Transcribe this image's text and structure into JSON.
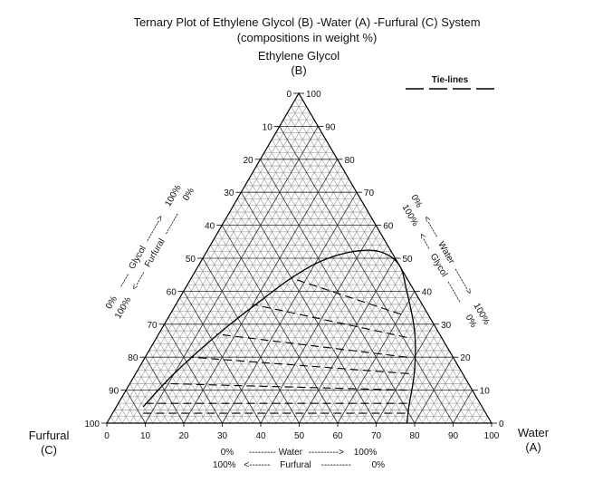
{
  "chart_data": {
    "type": "ternary",
    "title": "Ternary Plot of Ethylene Glycol (B) -Water (A) -Furfural (C) System",
    "subtitle": "(compositions in weight %)",
    "vertices": {
      "top": {
        "name": "Ethylene Glycol",
        "code": "(B)"
      },
      "left": {
        "name": "Furfural",
        "code": "(C)"
      },
      "right": {
        "name": "Water",
        "code": "(A)"
      }
    },
    "legend": {
      "label": "Tie-lines",
      "placement": "top-right"
    },
    "grid": true,
    "tick_values": [
      0,
      10,
      20,
      30,
      40,
      50,
      60,
      70,
      80,
      90,
      100
    ],
    "tick_labels": {
      "left_edge": [
        "0",
        "10",
        "20",
        "30",
        "40",
        "50",
        "60",
        "70",
        "80",
        "90",
        "100"
      ],
      "right_edge": [
        "100",
        "90",
        "80",
        "70",
        "60",
        "50",
        "40",
        "30",
        "20",
        "10",
        "0"
      ],
      "base": [
        "0",
        "10",
        "20",
        "30",
        "40",
        "50",
        "60",
        "70",
        "80",
        "90",
        "100"
      ]
    },
    "axis_captions": {
      "left": {
        "line1": {
          "start": "0%",
          "arrow_left": "-----",
          "label": "Glycol",
          "arrow_right": "-------->",
          "end": "100%"
        },
        "line2": {
          "start": "100%",
          "arrow_left": "<-----",
          "label": "Furfural",
          "arrow_right": "--------",
          "end": "0%"
        }
      },
      "right": {
        "line1": {
          "start": "0%",
          "arrow_left": "<------",
          "label": "Water",
          "arrow_right": "-------->",
          "end": "100%"
        },
        "line2": {
          "start": "100%",
          "arrow_left": "<----",
          "label": "Glycol",
          "arrow_right": "--------",
          "end": "0%"
        }
      },
      "bottom": {
        "line1": {
          "start": "0%",
          "arrow_left": "---------",
          "label": "Water",
          "arrow_right": "---------->",
          "end": "100%"
        },
        "line2": {
          "start": "100%",
          "arrow_left": "<-------",
          "label": "Furfural",
          "arrow_right": "----------",
          "end": "0%"
        }
      }
    },
    "binodal_curve": [
      {
        "water": 7,
        "glycol": 5
      },
      {
        "water": 10,
        "glycol": 15
      },
      {
        "water": 16,
        "glycol": 28
      },
      {
        "water": 22,
        "glycol": 38
      },
      {
        "water": 26,
        "glycol": 44
      },
      {
        "water": 31,
        "glycol": 49
      },
      {
        "water": 38,
        "glycol": 52
      },
      {
        "water": 45,
        "glycol": 52
      },
      {
        "water": 52,
        "glycol": 48
      },
      {
        "water": 58,
        "glycol": 40
      },
      {
        "water": 66,
        "glycol": 28
      },
      {
        "water": 72,
        "glycol": 16
      },
      {
        "water": 76,
        "glycol": 5
      },
      {
        "water": 78,
        "glycol": 0
      }
    ],
    "tie_lines": [
      {
        "raffinate": {
          "water": 60,
          "glycol": 33
        },
        "extract": {
          "water": 26,
          "glycol": 44
        }
      },
      {
        "raffinate": {
          "water": 65,
          "glycol": 26
        },
        "extract": {
          "water": 20,
          "glycol": 36
        }
      },
      {
        "raffinate": {
          "water": 68,
          "glycol": 20
        },
        "extract": {
          "water": 15,
          "glycol": 27
        }
      },
      {
        "raffinate": {
          "water": 71,
          "glycol": 15
        },
        "extract": {
          "water": 12,
          "glycol": 20
        }
      },
      {
        "raffinate": {
          "water": 73,
          "glycol": 10
        },
        "extract": {
          "water": 9,
          "glycol": 12
        }
      },
      {
        "raffinate": {
          "water": 75,
          "glycol": 6
        },
        "extract": {
          "water": 7,
          "glycol": 6
        }
      },
      {
        "raffinate": {
          "water": 76,
          "glycol": 3
        },
        "extract": {
          "water": 7,
          "glycol": 3
        }
      }
    ]
  }
}
